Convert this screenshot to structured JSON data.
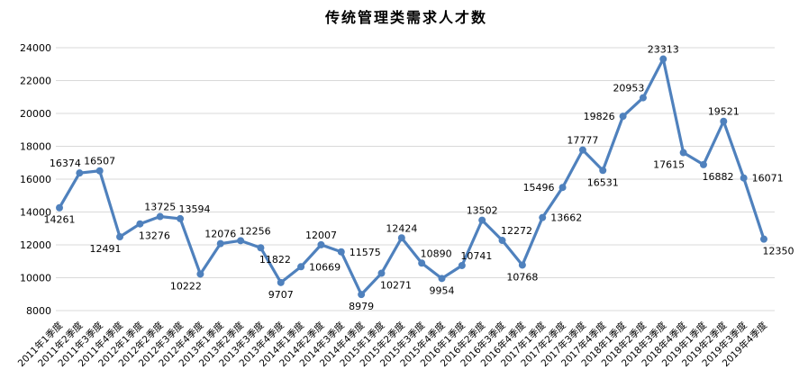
{
  "chart_data": {
    "type": "line",
    "title": "传统管理类需求人才数",
    "xlabel": "",
    "ylabel": "",
    "categories": [
      "2011年1季度",
      "2011年2季度",
      "2011年3季度",
      "2011年4季度",
      "2012年1季度",
      "2012年2季度",
      "2012年3季度",
      "2012年4季度",
      "2013年1季度",
      "2013年2季度",
      "2013年3季度",
      "2013年4季度",
      "2014年1季度",
      "2014年2季度",
      "2014年3季度",
      "2014年4季度",
      "2015年1季度",
      "2015年2季度",
      "2015年3季度",
      "2015年4季度",
      "2016年1季度",
      "2016年2季度",
      "2016年3季度",
      "2016年4季度",
      "2017年1季度",
      "2017年2季度",
      "2017年3季度",
      "2017年4季度",
      "2018年1季度",
      "2018年2季度",
      "2018年3季度",
      "2018年4季度",
      "2019年1季度",
      "2019年2季度",
      "2019年3季度",
      "2019年4季度"
    ],
    "series": [
      {
        "name": "传统管理类需求人才数",
        "values": [
          14261,
          16374,
          16507,
          12491,
          13276,
          13725,
          13594,
          10222,
          12076,
          12256,
          11822,
          9707,
          10669,
          12007,
          11575,
          8979,
          10271,
          12424,
          10890,
          9954,
          10741,
          13502,
          12272,
          10768,
          13662,
          15496,
          17777,
          16531,
          19826,
          20953,
          23313,
          17615,
          16882,
          19521,
          16071,
          12350
        ]
      }
    ],
    "ylim": [
      8000,
      24000
    ],
    "yticks": [
      8000,
      10000,
      12000,
      14000,
      16000,
      18000,
      20000,
      22000,
      24000
    ],
    "grid": "horizontal",
    "legend": "none",
    "marker": "circle",
    "data_labels": true,
    "label_positions": [
      "below",
      "above-left",
      "above",
      "below-left",
      "below-right",
      "above",
      "above-right",
      "below-left",
      "above",
      "above-right",
      "below-right",
      "below",
      "right",
      "above",
      "right",
      "below",
      "below-right",
      "above",
      "above-right",
      "below",
      "above-right",
      "above",
      "above-right",
      "below",
      "right",
      "left",
      "above",
      "below",
      "left",
      "above-left",
      "above",
      "below-left",
      "below-right",
      "above",
      "right",
      "below-right"
    ],
    "colors": {
      "line": "#4F81BD",
      "marker": "#4F81BD",
      "grid": "#D9D9D9",
      "text": "#000000",
      "background": "#FFFFFF"
    }
  }
}
